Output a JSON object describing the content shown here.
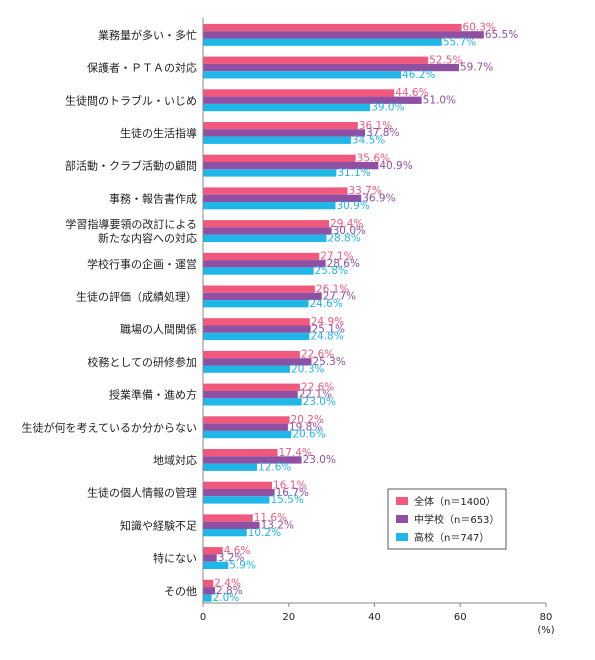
{
  "chart_data": {
    "type": "bar",
    "orientation": "horizontal",
    "categories": [
      [
        "業務量が多い・多忙"
      ],
      [
        "保護者・ＰＴＡの対応"
      ],
      [
        "生徒間のトラブル・いじめ"
      ],
      [
        "生徒の生活指導"
      ],
      [
        "部活動・クラブ活動の顧問"
      ],
      [
        "事務・報告書作成"
      ],
      [
        "学習指導要領の改訂による",
        "新たな内容への対応"
      ],
      [
        "学校行事の企画・運営"
      ],
      [
        "生徒の評価（成績処理）"
      ],
      [
        "職場の人間関係"
      ],
      [
        "校務としての研修参加"
      ],
      [
        "授業準備・進め方"
      ],
      [
        "生徒が何を考えているか分からない"
      ],
      [
        "地域対応"
      ],
      [
        "生徒の個人情報の管理"
      ],
      [
        "知識や経験不足"
      ],
      [
        "特にない"
      ],
      [
        "その他"
      ]
    ],
    "series": [
      {
        "name": "全体（n＝1400）",
        "color": "#f0587e",
        "values": [
          60.3,
          52.5,
          44.6,
          36.1,
          35.6,
          33.7,
          29.4,
          27.1,
          26.1,
          24.9,
          22.6,
          22.6,
          20.2,
          17.4,
          16.1,
          11.6,
          4.6,
          2.4
        ]
      },
      {
        "name": "中学校（n＝653）",
        "color": "#8f4fa3",
        "values": [
          65.5,
          59.7,
          51.0,
          37.8,
          40.9,
          36.9,
          30.0,
          28.6,
          27.7,
          25.1,
          25.3,
          22.1,
          19.8,
          23.0,
          16.7,
          13.2,
          3.2,
          2.8
        ]
      },
      {
        "name": "高校（n＝747）",
        "color": "#1fb6e8",
        "values": [
          55.7,
          46.2,
          39.0,
          34.5,
          31.1,
          30.9,
          28.8,
          25.8,
          24.6,
          24.8,
          20.3,
          23.0,
          20.6,
          12.6,
          15.5,
          10.2,
          5.9,
          2.0
        ]
      }
    ],
    "value_labels": [
      [
        "60.3%",
        "52.5%",
        "44.6%",
        "36.1%",
        "35.6%",
        "33.7%",
        "29.4%",
        "27.1%",
        "26.1%",
        "24.9%",
        "22.6%",
        "22.6%",
        "20.2%",
        "17.4%",
        "16.1%",
        "11.6%",
        "4.6%",
        "2.4%"
      ],
      [
        "65.5%",
        "59.7%",
        "51.0%",
        "37.8%",
        "40.9%",
        "36.9%",
        "30.0%",
        "28.6%",
        "27.7%",
        "25.1%",
        "25.3%",
        "22.1%",
        "19.8%",
        "23.0%",
        "16.7%",
        "13.2%",
        "3.2%",
        "2.8%"
      ],
      [
        "55.7%",
        "46.2%",
        "39.0%",
        "34.5%",
        "31.1%",
        "30.9%",
        "28.8%",
        "25.8%",
        "24.6%",
        "24.8%",
        "20.3%",
        "23.0%",
        "20.6%",
        "12.6%",
        "15.5%",
        "10.2%",
        "5.9%",
        "2.0%"
      ]
    ],
    "x_ticks": [
      0,
      20,
      40,
      60,
      80
    ],
    "x_tick_labels": [
      "0",
      "20",
      "40",
      "60",
      "80"
    ],
    "xlim": [
      0,
      80
    ],
    "x_unit_label": "(%)",
    "legend_position": "bottom-right",
    "value_label_colors": [
      "#f0587e",
      "#8f4fa3",
      "#1fb6e8"
    ],
    "axis_color": "#888888"
  }
}
